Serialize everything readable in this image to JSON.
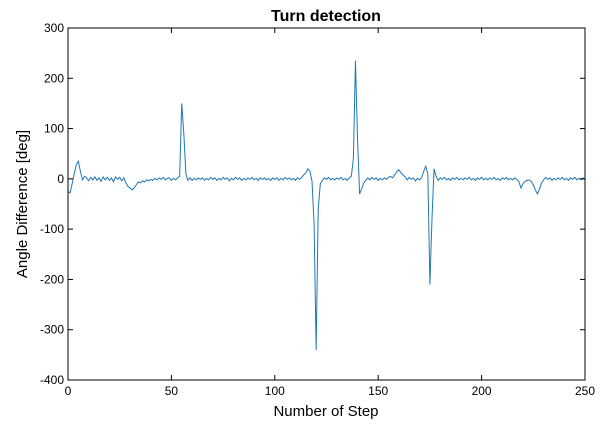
{
  "chart_data": {
    "type": "line",
    "title": "Turn detection",
    "xlabel": "Number of Step",
    "ylabel": "Angle Difference [deg]",
    "xlim": [
      0,
      250
    ],
    "ylim": [
      -400,
      300
    ],
    "xticks": [
      "0",
      "50",
      "100",
      "150",
      "200",
      "250"
    ],
    "yticks": [
      "300",
      "200",
      "100",
      "0",
      "-100",
      "-200",
      "-300",
      "-400"
    ],
    "grid": false,
    "line_color": "#1f77b4",
    "series": [
      {
        "points": [
          [
            0,
            -25
          ],
          [
            1,
            -28
          ],
          [
            2,
            -10
          ],
          [
            3,
            10
          ],
          [
            4,
            28
          ],
          [
            5,
            35
          ],
          [
            6,
            15
          ],
          [
            7,
            -2
          ],
          [
            8,
            5
          ],
          [
            9,
            2
          ],
          [
            10,
            -4
          ],
          [
            11,
            3
          ],
          [
            12,
            -2
          ],
          [
            13,
            4
          ],
          [
            14,
            -3
          ],
          [
            15,
            2
          ],
          [
            16,
            -5
          ],
          [
            17,
            4
          ],
          [
            18,
            -2
          ],
          [
            19,
            3
          ],
          [
            20,
            -3
          ],
          [
            21,
            2
          ],
          [
            22,
            -6
          ],
          [
            23,
            4
          ],
          [
            24,
            -1
          ],
          [
            25,
            3
          ],
          [
            26,
            -4
          ],
          [
            27,
            2
          ],
          [
            28,
            -8
          ],
          [
            29,
            -15
          ],
          [
            30,
            -18
          ],
          [
            31,
            -22
          ],
          [
            32,
            -18
          ],
          [
            33,
            -12
          ],
          [
            34,
            -6
          ],
          [
            35,
            -8
          ],
          [
            36,
            -4
          ],
          [
            37,
            -6
          ],
          [
            38,
            -2
          ],
          [
            39,
            -4
          ],
          [
            40,
            -1
          ],
          [
            41,
            -3
          ],
          [
            42,
            1
          ],
          [
            43,
            -2
          ],
          [
            44,
            2
          ],
          [
            45,
            -1
          ],
          [
            46,
            3
          ],
          [
            47,
            -2
          ],
          [
            48,
            1
          ],
          [
            49,
            2
          ],
          [
            50,
            -3
          ],
          [
            51,
            1
          ],
          [
            52,
            -2
          ],
          [
            53,
            2
          ],
          [
            54,
            5
          ],
          [
            55,
            150
          ],
          [
            56,
            90
          ],
          [
            57,
            10
          ],
          [
            58,
            -3
          ],
          [
            59,
            2
          ],
          [
            60,
            -3
          ],
          [
            61,
            1
          ],
          [
            62,
            -2
          ],
          [
            63,
            2
          ],
          [
            64,
            -1
          ],
          [
            65,
            2
          ],
          [
            66,
            -3
          ],
          [
            67,
            1
          ],
          [
            68,
            -2
          ],
          [
            69,
            3
          ],
          [
            70,
            -1
          ],
          [
            71,
            2
          ],
          [
            72,
            -3
          ],
          [
            73,
            1
          ],
          [
            74,
            -2
          ],
          [
            75,
            3
          ],
          [
            76,
            -1
          ],
          [
            77,
            2
          ],
          [
            78,
            -4
          ],
          [
            79,
            1
          ],
          [
            80,
            -2
          ],
          [
            81,
            3
          ],
          [
            82,
            -1
          ],
          [
            83,
            2
          ],
          [
            84,
            -3
          ],
          [
            85,
            1
          ],
          [
            86,
            -2
          ],
          [
            87,
            2
          ],
          [
            88,
            -1
          ],
          [
            89,
            3
          ],
          [
            90,
            -2
          ],
          [
            91,
            1
          ],
          [
            92,
            -3
          ],
          [
            93,
            2
          ],
          [
            94,
            -1
          ],
          [
            95,
            2
          ],
          [
            96,
            -2
          ],
          [
            97,
            1
          ],
          [
            98,
            -3
          ],
          [
            99,
            2
          ],
          [
            100,
            -1
          ],
          [
            101,
            2
          ],
          [
            102,
            -3
          ],
          [
            103,
            1
          ],
          [
            104,
            -2
          ],
          [
            105,
            3
          ],
          [
            106,
            -1
          ],
          [
            107,
            2
          ],
          [
            108,
            -2
          ],
          [
            109,
            1
          ],
          [
            110,
            -3
          ],
          [
            111,
            2
          ],
          [
            112,
            -1
          ],
          [
            113,
            3
          ],
          [
            114,
            8
          ],
          [
            115,
            12
          ],
          [
            116,
            20
          ],
          [
            117,
            15
          ],
          [
            118,
            -5
          ],
          [
            119,
            -90
          ],
          [
            120,
            -340
          ],
          [
            121,
            -60
          ],
          [
            122,
            -10
          ],
          [
            123,
            -3
          ],
          [
            124,
            2
          ],
          [
            125,
            -1
          ],
          [
            126,
            3
          ],
          [
            127,
            -2
          ],
          [
            128,
            1
          ],
          [
            129,
            -2
          ],
          [
            130,
            2
          ],
          [
            131,
            -1
          ],
          [
            132,
            3
          ],
          [
            133,
            -2
          ],
          [
            134,
            1
          ],
          [
            135,
            -3
          ],
          [
            136,
            2
          ],
          [
            137,
            5
          ],
          [
            138,
            40
          ],
          [
            139,
            235
          ],
          [
            140,
            80
          ],
          [
            141,
            -30
          ],
          [
            142,
            -20
          ],
          [
            143,
            -8
          ],
          [
            144,
            -3
          ],
          [
            145,
            2
          ],
          [
            146,
            -2
          ],
          [
            147,
            3
          ],
          [
            148,
            -1
          ],
          [
            149,
            2
          ],
          [
            150,
            -3
          ],
          [
            151,
            1
          ],
          [
            152,
            -2
          ],
          [
            153,
            2
          ],
          [
            154,
            -1
          ],
          [
            155,
            3
          ],
          [
            156,
            5
          ],
          [
            157,
            2
          ],
          [
            158,
            8
          ],
          [
            159,
            15
          ],
          [
            160,
            18
          ],
          [
            161,
            12
          ],
          [
            162,
            8
          ],
          [
            163,
            4
          ],
          [
            164,
            -2
          ],
          [
            165,
            3
          ],
          [
            166,
            -1
          ],
          [
            167,
            2
          ],
          [
            168,
            -4
          ],
          [
            169,
            1
          ],
          [
            170,
            -2
          ],
          [
            171,
            3
          ],
          [
            172,
            15
          ],
          [
            173,
            25
          ],
          [
            174,
            10
          ],
          [
            175,
            -210
          ],
          [
            176,
            -80
          ],
          [
            177,
            20
          ],
          [
            178,
            5
          ],
          [
            179,
            -3
          ],
          [
            180,
            2
          ],
          [
            181,
            -1
          ],
          [
            182,
            3
          ],
          [
            183,
            -2
          ],
          [
            184,
            1
          ],
          [
            185,
            -3
          ],
          [
            186,
            2
          ],
          [
            187,
            -1
          ],
          [
            188,
            3
          ],
          [
            189,
            -2
          ],
          [
            190,
            1
          ],
          [
            191,
            -2
          ],
          [
            192,
            2
          ],
          [
            193,
            -1
          ],
          [
            194,
            3
          ],
          [
            195,
            -2
          ],
          [
            196,
            1
          ],
          [
            197,
            -3
          ],
          [
            198,
            2
          ],
          [
            199,
            -1
          ],
          [
            200,
            3
          ],
          [
            201,
            -2
          ],
          [
            202,
            1
          ],
          [
            203,
            -2
          ],
          [
            204,
            2
          ],
          [
            205,
            -1
          ],
          [
            206,
            3
          ],
          [
            207,
            -2
          ],
          [
            208,
            1
          ],
          [
            209,
            -3
          ],
          [
            210,
            2
          ],
          [
            211,
            -1
          ],
          [
            212,
            3
          ],
          [
            213,
            -2
          ],
          [
            214,
            1
          ],
          [
            215,
            -2
          ],
          [
            216,
            2
          ],
          [
            217,
            -1
          ],
          [
            218,
            -5
          ],
          [
            219,
            -18
          ],
          [
            220,
            -10
          ],
          [
            221,
            -5
          ],
          [
            222,
            -3
          ],
          [
            223,
            -2
          ],
          [
            224,
            -5
          ],
          [
            225,
            -12
          ],
          [
            226,
            -22
          ],
          [
            227,
            -30
          ],
          [
            228,
            -20
          ],
          [
            229,
            -8
          ],
          [
            230,
            -2
          ],
          [
            231,
            3
          ],
          [
            232,
            -1
          ],
          [
            233,
            2
          ],
          [
            234,
            -3
          ],
          [
            235,
            1
          ],
          [
            236,
            -2
          ],
          [
            237,
            2
          ],
          [
            238,
            -1
          ],
          [
            239,
            3
          ],
          [
            240,
            -2
          ],
          [
            241,
            1
          ],
          [
            242,
            -3
          ],
          [
            243,
            2
          ],
          [
            244,
            -1
          ],
          [
            245,
            3
          ],
          [
            246,
            -2
          ],
          [
            247,
            1
          ],
          [
            248,
            -2
          ],
          [
            249,
            2
          ],
          [
            250,
            -1
          ]
        ]
      }
    ]
  }
}
